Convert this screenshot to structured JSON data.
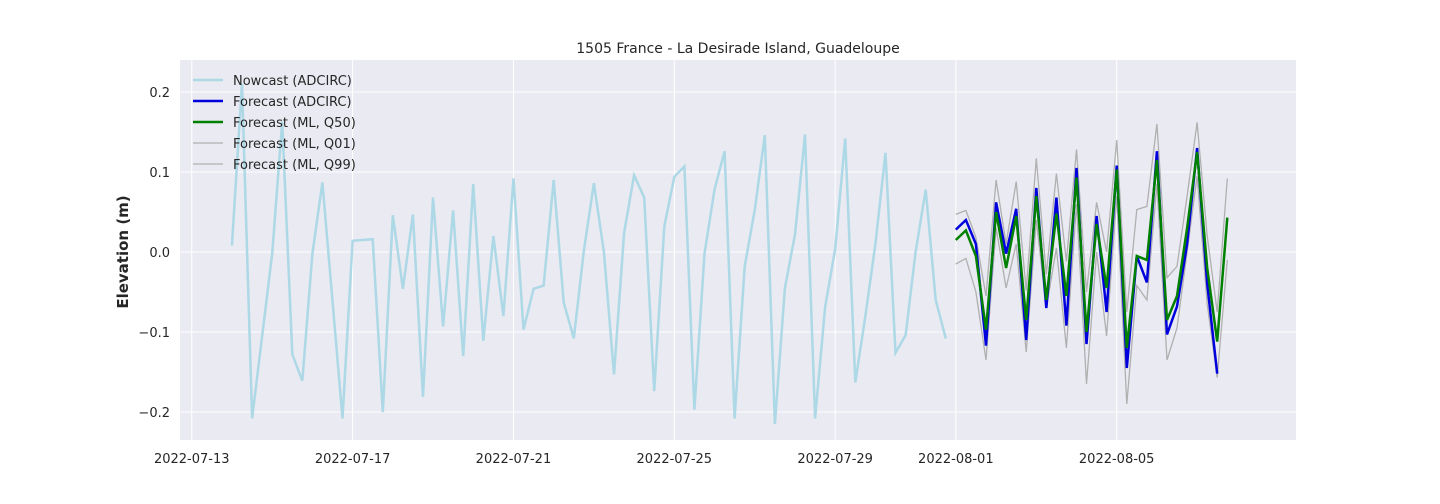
{
  "chart_data": {
    "type": "line",
    "title": "1505 France - La Desirade Island, Guadeloupe",
    "xlabel": "",
    "ylabel": "Elevation (m)",
    "xlim": [
      "2022-07-12T17:00",
      "2022-08-09T11:00"
    ],
    "ylim": [
      -0.235,
      0.24
    ],
    "x_ticks": [
      {
        "date": "2022-07-13",
        "label": "2022-07-13"
      },
      {
        "date": "2022-07-17",
        "label": "2022-07-17"
      },
      {
        "date": "2022-07-21",
        "label": "2022-07-21"
      },
      {
        "date": "2022-07-25",
        "label": "2022-07-25"
      },
      {
        "date": "2022-07-29",
        "label": "2022-07-29"
      },
      {
        "date": "2022-08-01",
        "label": "2022-08-01"
      },
      {
        "date": "2022-08-05",
        "label": "2022-08-05"
      }
    ],
    "y_ticks": [
      {
        "value": 0.2,
        "label": "0.2"
      },
      {
        "value": 0.1,
        "label": "0.1"
      },
      {
        "value": 0.0,
        "label": "0.0"
      },
      {
        "value": -0.1,
        "label": "−0.1"
      },
      {
        "value": -0.2,
        "label": "−0.2"
      }
    ],
    "grid": true,
    "legend_position": "top-left",
    "colors": {
      "background": "#eaeaf2",
      "grid": "#ffffff",
      "text": "#262626"
    },
    "series": [
      {
        "name": "Nowcast (ADCIRC)",
        "color": "#add8e6",
        "width": 2.5,
        "points": [
          [
            "2022-07-14T00:00",
            0.008
          ],
          [
            "2022-07-14T06:00",
            0.21
          ],
          [
            "2022-07-14T12:00",
            -0.208
          ],
          [
            "2022-07-15T00:00",
            -0.002
          ],
          [
            "2022-07-15T06:00",
            0.163
          ],
          [
            "2022-07-15T12:00",
            -0.128
          ],
          [
            "2022-07-15T18:00",
            -0.161
          ],
          [
            "2022-07-16T00:00",
            -0.002
          ],
          [
            "2022-07-16T06:00",
            0.087
          ],
          [
            "2022-07-16T18:00",
            -0.208
          ],
          [
            "2022-07-17T00:00",
            0.014
          ],
          [
            "2022-07-17T12:00",
            0.016
          ],
          [
            "2022-07-17T18:00",
            -0.2
          ],
          [
            "2022-07-18T00:00",
            0.046
          ],
          [
            "2022-07-18T06:00",
            -0.046
          ],
          [
            "2022-07-18T12:00",
            0.047
          ],
          [
            "2022-07-18T18:00",
            -0.181
          ],
          [
            "2022-07-19T00:00",
            0.068
          ],
          [
            "2022-07-19T06:00",
            -0.093
          ],
          [
            "2022-07-19T12:00",
            0.052
          ],
          [
            "2022-07-19T18:00",
            -0.13
          ],
          [
            "2022-07-20T00:00",
            0.085
          ],
          [
            "2022-07-20T06:00",
            -0.111
          ],
          [
            "2022-07-20T12:00",
            0.02
          ],
          [
            "2022-07-20T18:00",
            -0.08
          ],
          [
            "2022-07-21T00:00",
            0.092
          ],
          [
            "2022-07-21T06:00",
            -0.097
          ],
          [
            "2022-07-21T12:00",
            -0.046
          ],
          [
            "2022-07-21T18:00",
            -0.042
          ],
          [
            "2022-07-22T00:00",
            0.09
          ],
          [
            "2022-07-22T06:00",
            -0.063
          ],
          [
            "2022-07-22T12:00",
            -0.108
          ],
          [
            "2022-07-22T18:00",
            0.001
          ],
          [
            "2022-07-23T00:00",
            0.086
          ],
          [
            "2022-07-23T06:00",
            0.0
          ],
          [
            "2022-07-23T12:00",
            -0.153
          ],
          [
            "2022-07-23T18:00",
            0.024
          ],
          [
            "2022-07-24T00:00",
            0.096
          ],
          [
            "2022-07-24T06:00",
            0.068
          ],
          [
            "2022-07-24T12:00",
            -0.174
          ],
          [
            "2022-07-24T18:00",
            0.032
          ],
          [
            "2022-07-25T00:00",
            0.094
          ],
          [
            "2022-07-25T06:00",
            0.107
          ],
          [
            "2022-07-25T12:00",
            -0.197
          ],
          [
            "2022-07-25T18:00",
            -0.002
          ],
          [
            "2022-07-26T00:00",
            0.078
          ],
          [
            "2022-07-26T06:00",
            0.126
          ],
          [
            "2022-07-26T12:00",
            -0.208
          ],
          [
            "2022-07-26T18:00",
            -0.018
          ],
          [
            "2022-07-27T00:00",
            0.053
          ],
          [
            "2022-07-27T06:00",
            0.146
          ],
          [
            "2022-07-27T12:00",
            -0.215
          ],
          [
            "2022-07-27T18:00",
            -0.045
          ],
          [
            "2022-07-28T00:00",
            0.022
          ],
          [
            "2022-07-28T06:00",
            0.147
          ],
          [
            "2022-07-28T12:00",
            -0.208
          ],
          [
            "2022-07-28T18:00",
            -0.069
          ],
          [
            "2022-07-29T00:00",
            0.004
          ],
          [
            "2022-07-29T06:00",
            0.142
          ],
          [
            "2022-07-29T12:00",
            -0.163
          ],
          [
            "2022-07-29T18:00",
            -0.08
          ],
          [
            "2022-07-30T00:00",
            0.01
          ],
          [
            "2022-07-30T06:00",
            0.124
          ],
          [
            "2022-07-30T12:00",
            -0.126
          ],
          [
            "2022-07-30T18:00",
            -0.104
          ],
          [
            "2022-07-31T00:00",
            0.0
          ],
          [
            "2022-07-31T06:00",
            0.078
          ],
          [
            "2022-07-31T12:00",
            -0.06
          ],
          [
            "2022-07-31T18:00",
            -0.108
          ]
        ]
      },
      {
        "name": "Forecast (ADCIRC)",
        "color": "#0000dd",
        "width": 2.5,
        "points": [
          [
            "2022-08-01T00:00",
            0.028
          ],
          [
            "2022-08-01T06:00",
            0.04
          ],
          [
            "2022-08-01T12:00",
            0.01
          ],
          [
            "2022-08-01T18:00",
            -0.117
          ],
          [
            "2022-08-02T00:00",
            0.062
          ],
          [
            "2022-08-02T06:00",
            -0.002
          ],
          [
            "2022-08-02T12:00",
            0.054
          ],
          [
            "2022-08-02T18:00",
            -0.11
          ],
          [
            "2022-08-03T00:00",
            0.08
          ],
          [
            "2022-08-03T06:00",
            -0.07
          ],
          [
            "2022-08-03T12:00",
            0.068
          ],
          [
            "2022-08-03T18:00",
            -0.092
          ],
          [
            "2022-08-04T00:00",
            0.105
          ],
          [
            "2022-08-04T06:00",
            -0.115
          ],
          [
            "2022-08-04T12:00",
            0.045
          ],
          [
            "2022-08-04T18:00",
            -0.075
          ],
          [
            "2022-08-05T00:00",
            0.108
          ],
          [
            "2022-08-05T06:00",
            -0.145
          ],
          [
            "2022-08-05T12:00",
            -0.005
          ],
          [
            "2022-08-05T18:00",
            -0.038
          ],
          [
            "2022-08-06T00:00",
            0.126
          ],
          [
            "2022-08-06T06:00",
            -0.103
          ],
          [
            "2022-08-06T12:00",
            -0.068
          ],
          [
            "2022-08-06T18:00",
            0.01
          ],
          [
            "2022-08-07T00:00",
            0.13
          ],
          [
            "2022-08-07T06:00",
            -0.04
          ],
          [
            "2022-08-07T12:00",
            -0.152
          ]
        ]
      },
      {
        "name": "Forecast (ML, Q50)",
        "color": "#008000",
        "width": 2.5,
        "points": [
          [
            "2022-08-01T00:00",
            0.015
          ],
          [
            "2022-08-01T06:00",
            0.027
          ],
          [
            "2022-08-01T12:00",
            -0.005
          ],
          [
            "2022-08-01T18:00",
            -0.097
          ],
          [
            "2022-08-02T00:00",
            0.05
          ],
          [
            "2022-08-02T06:00",
            -0.02
          ],
          [
            "2022-08-02T12:00",
            0.045
          ],
          [
            "2022-08-02T18:00",
            -0.085
          ],
          [
            "2022-08-03T00:00",
            0.07
          ],
          [
            "2022-08-03T06:00",
            -0.06
          ],
          [
            "2022-08-03T12:00",
            0.048
          ],
          [
            "2022-08-03T18:00",
            -0.055
          ],
          [
            "2022-08-04T00:00",
            0.093
          ],
          [
            "2022-08-04T06:00",
            -0.1
          ],
          [
            "2022-08-04T12:00",
            0.035
          ],
          [
            "2022-08-04T18:00",
            -0.045
          ],
          [
            "2022-08-05T00:00",
            0.103
          ],
          [
            "2022-08-05T06:00",
            -0.12
          ],
          [
            "2022-08-05T12:00",
            -0.005
          ],
          [
            "2022-08-05T18:00",
            -0.01
          ],
          [
            "2022-08-06T00:00",
            0.115
          ],
          [
            "2022-08-06T06:00",
            -0.085
          ],
          [
            "2022-08-06T12:00",
            -0.055
          ],
          [
            "2022-08-06T18:00",
            0.03
          ],
          [
            "2022-08-07T00:00",
            0.125
          ],
          [
            "2022-08-07T06:00",
            -0.02
          ],
          [
            "2022-08-07T12:00",
            -0.112
          ],
          [
            "2022-08-07T18:00",
            0.043
          ]
        ]
      },
      {
        "name": "Forecast (ML, Q01)",
        "color": "#b0b0b0",
        "width": 1.3,
        "points": [
          [
            "2022-08-01T00:00",
            -0.015
          ],
          [
            "2022-08-01T06:00",
            -0.008
          ],
          [
            "2022-08-01T12:00",
            -0.05
          ],
          [
            "2022-08-01T18:00",
            -0.135
          ],
          [
            "2022-08-02T00:00",
            0.03
          ],
          [
            "2022-08-02T06:00",
            -0.045
          ],
          [
            "2022-08-02T12:00",
            0.01
          ],
          [
            "2022-08-02T18:00",
            -0.125
          ],
          [
            "2022-08-03T00:00",
            0.04
          ],
          [
            "2022-08-03T06:00",
            -0.07
          ],
          [
            "2022-08-03T12:00",
            0.005
          ],
          [
            "2022-08-03T18:00",
            -0.12
          ],
          [
            "2022-08-04T00:00",
            0.06
          ],
          [
            "2022-08-04T06:00",
            -0.165
          ],
          [
            "2022-08-04T12:00",
            0.0
          ],
          [
            "2022-08-04T18:00",
            -0.105
          ],
          [
            "2022-08-05T00:00",
            0.07
          ],
          [
            "2022-08-05T06:00",
            -0.19
          ],
          [
            "2022-08-05T12:00",
            -0.042
          ],
          [
            "2022-08-05T18:00",
            -0.06
          ],
          [
            "2022-08-06T00:00",
            0.085
          ],
          [
            "2022-08-06T06:00",
            -0.135
          ],
          [
            "2022-08-06T12:00",
            -0.095
          ],
          [
            "2022-08-06T18:00",
            0.0
          ],
          [
            "2022-08-07T00:00",
            0.095
          ],
          [
            "2022-08-07T06:00",
            -0.065
          ],
          [
            "2022-08-07T12:00",
            -0.157
          ],
          [
            "2022-08-07T18:00",
            -0.01
          ]
        ]
      },
      {
        "name": "Forecast (ML, Q99)",
        "color": "#b0b0b0",
        "width": 1.3,
        "points": [
          [
            "2022-08-01T00:00",
            0.047
          ],
          [
            "2022-08-01T06:00",
            0.052
          ],
          [
            "2022-08-01T12:00",
            0.018
          ],
          [
            "2022-08-01T18:00",
            -0.055
          ],
          [
            "2022-08-02T00:00",
            0.09
          ],
          [
            "2022-08-02T06:00",
            0.01
          ],
          [
            "2022-08-02T12:00",
            0.088
          ],
          [
            "2022-08-02T18:00",
            -0.048
          ],
          [
            "2022-08-03T00:00",
            0.117
          ],
          [
            "2022-08-03T06:00",
            -0.028
          ],
          [
            "2022-08-03T12:00",
            0.098
          ],
          [
            "2022-08-03T18:00",
            -0.012
          ],
          [
            "2022-08-04T00:00",
            0.128
          ],
          [
            "2022-08-04T06:00",
            -0.05
          ],
          [
            "2022-08-04T12:00",
            0.062
          ],
          [
            "2022-08-04T18:00",
            0.0
          ],
          [
            "2022-08-05T00:00",
            0.14
          ],
          [
            "2022-08-05T06:00",
            -0.075
          ],
          [
            "2022-08-05T12:00",
            0.053
          ],
          [
            "2022-08-05T18:00",
            0.057
          ],
          [
            "2022-08-06T00:00",
            0.16
          ],
          [
            "2022-08-06T06:00",
            -0.032
          ],
          [
            "2022-08-06T12:00",
            -0.018
          ],
          [
            "2022-08-06T18:00",
            0.07
          ],
          [
            "2022-08-07T00:00",
            0.162
          ],
          [
            "2022-08-07T06:00",
            0.02
          ],
          [
            "2022-08-07T12:00",
            -0.075
          ],
          [
            "2022-08-07T18:00",
            0.092
          ]
        ]
      }
    ]
  }
}
